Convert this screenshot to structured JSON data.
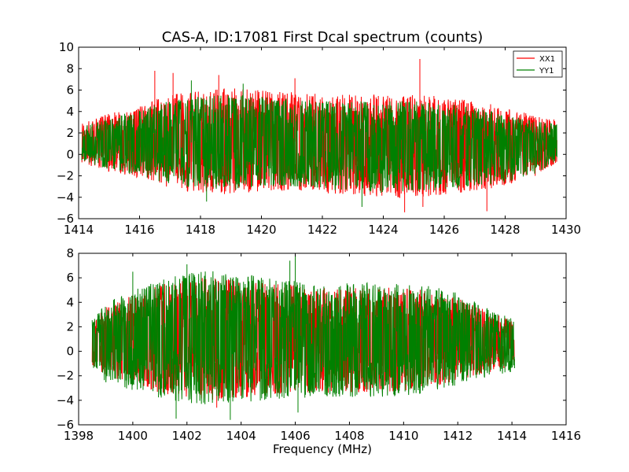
{
  "chart_data": [
    {
      "type": "line",
      "title": "CAS-A, ID:17081 First Dcal spectrum (counts)",
      "xlabel": "",
      "ylabel": "",
      "xlim": [
        1414,
        1430
      ],
      "ylim": [
        -6,
        10
      ],
      "x_ticks": [
        1414,
        1416,
        1418,
        1420,
        1422,
        1424,
        1426,
        1428,
        1430
      ],
      "y_ticks": [
        -6,
        -4,
        -2,
        0,
        2,
        4,
        6,
        8,
        10
      ],
      "x_range": [
        1414.1,
        1429.7
      ],
      "grid": false,
      "legend": {
        "location": "top-right",
        "entries": [
          "XX1",
          "YY1"
        ]
      },
      "series": [
        {
          "name": "XX1",
          "color": "#ff0000",
          "envelope_x": [
            1414.1,
            1415,
            1416,
            1417,
            1418,
            1419,
            1420,
            1421,
            1422,
            1423,
            1424,
            1425,
            1426,
            1427,
            1428,
            1429,
            1429.7
          ],
          "envelope_upper": [
            3.0,
            3.8,
            4.6,
            5.6,
            6.0,
            6.2,
            6.0,
            5.8,
            5.6,
            5.6,
            5.6,
            5.6,
            5.4,
            5.0,
            4.4,
            3.6,
            3.2
          ],
          "envelope_lower": [
            -0.8,
            -1.6,
            -2.2,
            -3.2,
            -3.6,
            -3.8,
            -3.4,
            -3.4,
            -3.6,
            -3.8,
            -4.2,
            -4.0,
            -3.8,
            -3.4,
            -3.0,
            -2.0,
            -0.8
          ],
          "peaks": [
            {
              "x": 1416.5,
              "y": 7.8
            },
            {
              "x": 1417.1,
              "y": 7.6
            },
            {
              "x": 1418.6,
              "y": 7.4
            },
            {
              "x": 1421.1,
              "y": 7.1
            },
            {
              "x": 1425.2,
              "y": 8.9
            },
            {
              "x": 1424.7,
              "y": -5.4
            },
            {
              "x": 1425.3,
              "y": -4.9
            },
            {
              "x": 1427.4,
              "y": -5.3
            }
          ]
        },
        {
          "name": "YY1",
          "color": "#008000",
          "envelope_x": [
            1414.1,
            1415,
            1416,
            1417,
            1418,
            1419,
            1420,
            1421,
            1422,
            1423,
            1424,
            1425,
            1426,
            1427,
            1428,
            1429,
            1429.7
          ],
          "envelope_upper": [
            2.6,
            3.4,
            4.2,
            5.0,
            5.4,
            5.6,
            5.4,
            5.2,
            5.0,
            5.0,
            5.0,
            5.0,
            4.8,
            4.4,
            3.8,
            3.2,
            2.8
          ],
          "envelope_lower": [
            -0.6,
            -1.4,
            -2.0,
            -2.8,
            -3.2,
            -3.4,
            -3.0,
            -3.0,
            -3.2,
            -3.4,
            -3.6,
            -3.6,
            -3.4,
            -3.0,
            -2.6,
            -1.8,
            -0.6
          ],
          "peaks": [
            {
              "x": 1417.7,
              "y": 6.9
            },
            {
              "x": 1419.4,
              "y": 6.6
            },
            {
              "x": 1423.3,
              "y": -4.9
            },
            {
              "x": 1418.2,
              "y": -4.4
            }
          ]
        }
      ]
    },
    {
      "type": "line",
      "title": "",
      "xlabel": "Frequency (MHz)",
      "ylabel": "",
      "xlim": [
        1398,
        1416
      ],
      "ylim": [
        -6,
        8
      ],
      "x_ticks": [
        1398,
        1400,
        1402,
        1404,
        1406,
        1408,
        1410,
        1412,
        1414,
        1416
      ],
      "y_ticks": [
        -6,
        -4,
        -2,
        0,
        2,
        4,
        6,
        8
      ],
      "x_range": [
        1398.5,
        1414.1
      ],
      "grid": false,
      "series": [
        {
          "name": "XX1",
          "color": "#ff0000",
          "envelope_x": [
            1398.5,
            1399,
            1400,
            1401,
            1402,
            1403,
            1404,
            1405,
            1406,
            1407,
            1408,
            1409,
            1410,
            1411,
            1412,
            1413,
            1414.1
          ],
          "envelope_upper": [
            2.4,
            3.6,
            4.6,
            5.4,
            6.0,
            6.0,
            5.8,
            5.6,
            5.4,
            5.2,
            5.2,
            5.2,
            5.2,
            5.0,
            4.4,
            3.4,
            2.4
          ],
          "envelope_lower": [
            -1.2,
            -2.0,
            -2.6,
            -3.4,
            -3.8,
            -4.0,
            -3.8,
            -3.6,
            -3.4,
            -3.4,
            -3.4,
            -3.4,
            -3.2,
            -3.0,
            -2.4,
            -1.8,
            -1.2
          ],
          "peaks": [
            {
              "x": 1401.6,
              "y": -4.4
            },
            {
              "x": 1403.1,
              "y": -4.6
            }
          ]
        },
        {
          "name": "YY1",
          "color": "#008000",
          "envelope_x": [
            1398.5,
            1399,
            1400,
            1401,
            1402,
            1403,
            1404,
            1405,
            1406,
            1407,
            1408,
            1409,
            1410,
            1411,
            1412,
            1413,
            1414.1
          ],
          "envelope_upper": [
            2.6,
            4.0,
            5.0,
            5.8,
            6.4,
            6.6,
            6.4,
            6.0,
            5.8,
            5.6,
            5.6,
            5.6,
            5.6,
            5.4,
            4.8,
            3.6,
            2.6
          ],
          "envelope_lower": [
            -1.6,
            -2.6,
            -3.2,
            -3.8,
            -4.2,
            -4.4,
            -4.2,
            -4.0,
            -3.8,
            -3.8,
            -3.8,
            -3.8,
            -3.6,
            -3.4,
            -2.8,
            -2.2,
            -1.6
          ],
          "peaks": [
            {
              "x": 1400.0,
              "y": 6.5
            },
            {
              "x": 1402.0,
              "y": 7.1
            },
            {
              "x": 1406.0,
              "y": 7.8
            },
            {
              "x": 1405.8,
              "y": 7.4
            },
            {
              "x": 1401.6,
              "y": -5.5
            },
            {
              "x": 1403.6,
              "y": -5.6
            },
            {
              "x": 1406.1,
              "y": -5.0
            }
          ]
        }
      ]
    }
  ]
}
